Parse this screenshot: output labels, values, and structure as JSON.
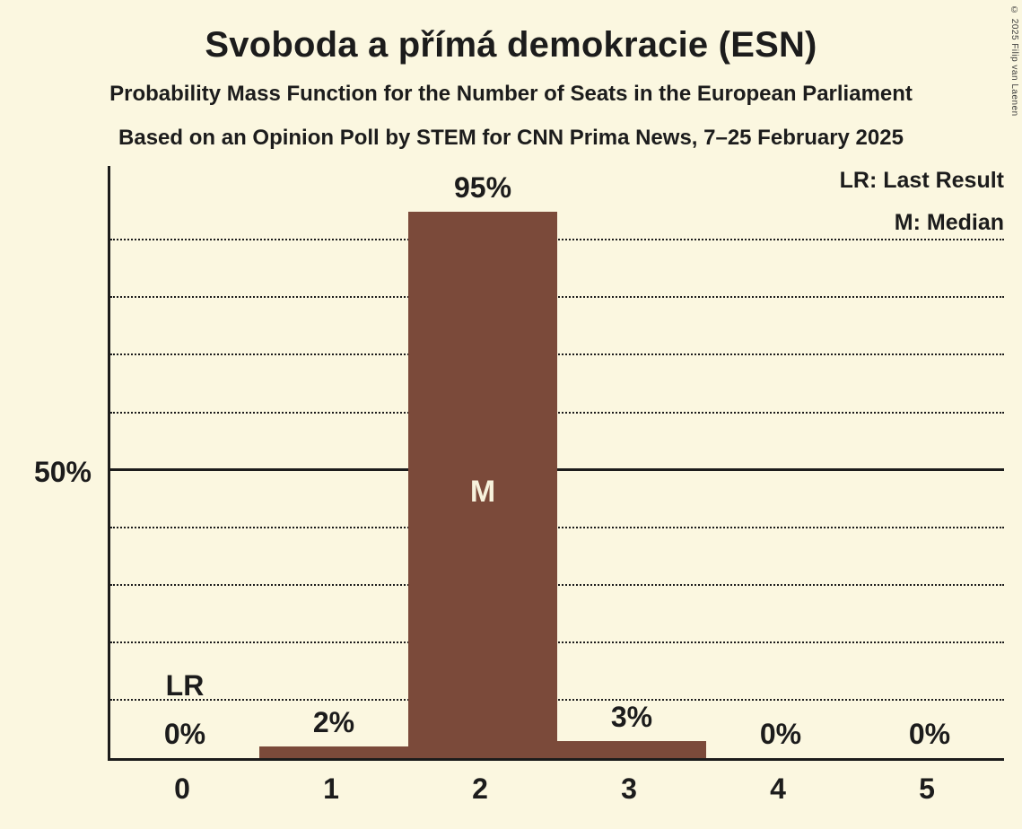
{
  "title": "Svoboda a přímá demokracie (ESN)",
  "subtitles": [
    "Probability Mass Function for the Number of Seats in the European Parliament",
    "Based on an Opinion Poll by STEM for CNN Prima News, 7–25 February 2025"
  ],
  "copyright": "© 2025 Filip van Laenen",
  "legend": {
    "last_result": "LR: Last Result",
    "median": "M: Median"
  },
  "y_axis_tick_label": "50%",
  "colors": {
    "background": "#fbf7e0",
    "bar": "#7b4a3a",
    "text": "#1c1c1c",
    "median_text": "#f7f2dc"
  },
  "chart_data": {
    "type": "bar",
    "title": "Svoboda a přímá demokracie (ESN)",
    "categories": [
      "0",
      "1",
      "2",
      "3",
      "4",
      "5"
    ],
    "values": [
      0,
      2,
      95,
      3,
      0,
      0
    ],
    "value_labels": [
      "0%",
      "2%",
      "95%",
      "3%",
      "0%",
      "0%"
    ],
    "xlabel": "",
    "ylabel": "",
    "ylim": [
      0,
      103
    ],
    "grid": "dotted horizontal lines every 10%, solid line at 50%",
    "gridlines_percent": [
      10,
      20,
      30,
      40,
      50,
      60,
      70,
      80,
      90
    ],
    "solid_line_percent": 50,
    "y_tick": {
      "percent": 50,
      "label": "50%"
    },
    "median_index": 2,
    "median_label": "M",
    "last_result_index": 0,
    "last_result_label": "LR",
    "legend_position": "top-right"
  }
}
